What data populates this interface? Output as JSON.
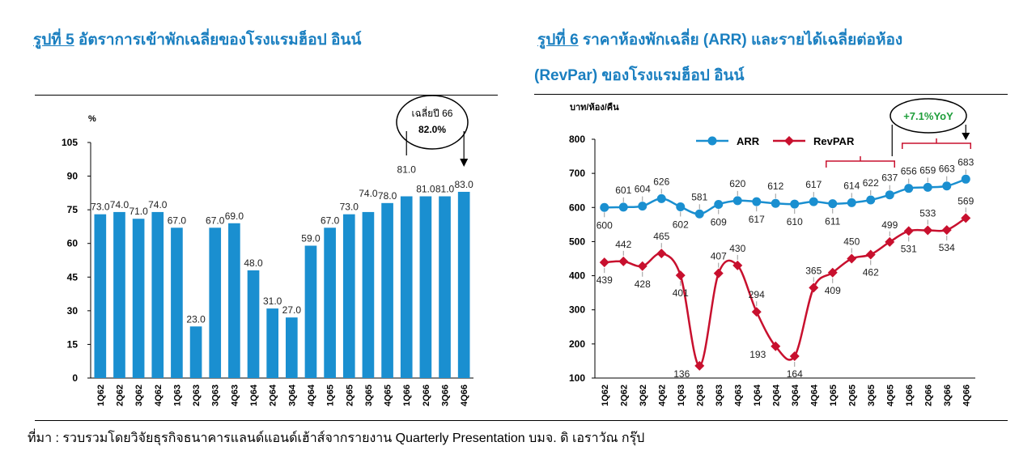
{
  "figure5": {
    "title_prefix": "รูปที่ 5",
    "title_rest": " อัตราการเข้าพักเฉลี่ยของโรงแรมฮ็อป อินน์",
    "callout_line1": "เฉลี่ยปี 66",
    "callout_line2": "82.0%",
    "colors": {
      "bar": "#1a8fd0",
      "axis": "#000000"
    }
  },
  "figure6": {
    "title_prefix": "รูปที่ 6",
    "title_rest": " ราคาห้องพักเฉลี่ย (ARR) และรายได้เฉลี่ยต่อห้อง",
    "title_line2": "(RevPar) ของโรงแรมฮ็อป อินน์",
    "callout": "+7.1%YoY",
    "colors": {
      "arr": "#1a8fd0",
      "revpar": "#c8102e",
      "bracket": "#c8102e",
      "callout_text": "#1e9e3a"
    }
  },
  "source_text": "ที่มา : รวบรวมโดยวิจัยธุรกิจธนาคารแลนด์แอนด์เฮ้าส์จากรายงาน Quarterly Presentation บมจ. ดิ เอราวัณ กรุ๊ป",
  "chart_data": [
    {
      "type": "bar",
      "title": "รูปที่ 5 อัตราการเข้าพักเฉลี่ยของโรงแรมฮ็อป อินน์",
      "ylabel": "%",
      "ylim": [
        0,
        105
      ],
      "yticks": [
        0,
        15,
        30,
        45,
        60,
        75,
        90,
        105
      ],
      "categories": [
        "1Q62",
        "2Q62",
        "3Q62",
        "4Q62",
        "1Q63",
        "2Q63",
        "3Q63",
        "4Q63",
        "1Q64",
        "2Q64",
        "3Q64",
        "4Q64",
        "1Q65",
        "2Q65",
        "3Q65",
        "4Q65",
        "1Q66",
        "2Q66",
        "3Q66",
        "4Q66"
      ],
      "values": [
        73.0,
        74.0,
        71.0,
        74.0,
        67.0,
        23.0,
        67.0,
        69.0,
        48.0,
        31.0,
        27.0,
        59.0,
        67.0,
        73.0,
        74.0,
        78.0,
        81.0,
        81.0,
        81.0,
        83.0
      ],
      "labels": [
        "73.0",
        "74.0",
        "71.0",
        "74.0",
        "67.0",
        "23.0",
        "67.0",
        "69.0",
        "48.0",
        "31.0",
        "27.0",
        "59.0",
        "67.0",
        "73.0",
        "74.0",
        "78.0",
        "81.0",
        "81.0",
        "81.0",
        "83.0"
      ],
      "grid": false,
      "legend": "none"
    },
    {
      "type": "line",
      "title": "รูปที่ 6 ราคาห้องพักเฉลี่ย (ARR) และรายได้เฉลี่ยต่อห้อง (RevPar) ของโรงแรมฮ็อป อินน์",
      "ylabel": "บาท/ห้อง/คืน",
      "ylim": [
        100,
        800
      ],
      "yticks": [
        100,
        200,
        300,
        400,
        500,
        600,
        700,
        800
      ],
      "x": [
        "1Q62",
        "2Q62",
        "3Q62",
        "4Q62",
        "1Q63",
        "2Q63",
        "3Q63",
        "4Q63",
        "1Q64",
        "2Q64",
        "3Q64",
        "4Q64",
        "1Q65",
        "2Q65",
        "3Q65",
        "4Q65",
        "1Q66",
        "2Q66",
        "3Q66",
        "4Q66"
      ],
      "series": [
        {
          "name": "ARR",
          "values": [
            600,
            601,
            604,
            626,
            602,
            581,
            609,
            620,
            617,
            612,
            610,
            617,
            611,
            614,
            622,
            637,
            656,
            659,
            663,
            683
          ]
        },
        {
          "name": "RevPAR",
          "values": [
            439,
            442,
            428,
            465,
            401,
            136,
            407,
            430,
            294,
            193,
            164,
            365,
            409,
            450,
            462,
            499,
            531,
            533,
            534,
            569
          ]
        }
      ],
      "grid": false,
      "legend": "top"
    }
  ]
}
